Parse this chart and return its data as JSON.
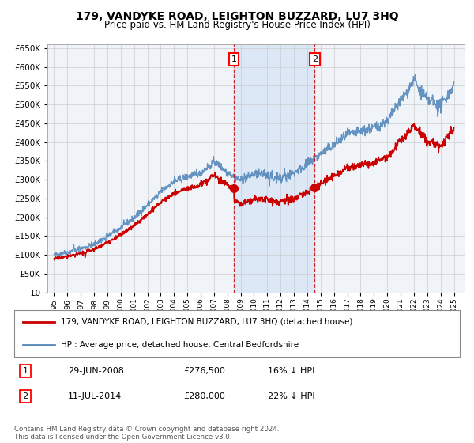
{
  "title": "179, VANDYKE ROAD, LEIGHTON BUZZARD, LU7 3HQ",
  "subtitle": "Price paid vs. HM Land Registry's House Price Index (HPI)",
  "legend_line1": "179, VANDYKE ROAD, LEIGHTON BUZZARD, LU7 3HQ (detached house)",
  "legend_line2": "HPI: Average price, detached house, Central Bedfordshire",
  "marker1_date": "29-JUN-2008",
  "marker1_price": "£276,500",
  "marker1_hpi": "16% ↓ HPI",
  "marker2_date": "11-JUL-2014",
  "marker2_price": "£280,000",
  "marker2_hpi": "22% ↓ HPI",
  "footer": "Contains HM Land Registry data © Crown copyright and database right 2024.\nThis data is licensed under the Open Government Licence v3.0.",
  "yticks": [
    0,
    50000,
    100000,
    150000,
    200000,
    250000,
    300000,
    350000,
    400000,
    450000,
    500000,
    550000,
    600000,
    650000
  ],
  "background_color": "#ffffff",
  "grid_color": "#cccccc",
  "plot_bg_color": "#f0f4f8",
  "red_color": "#cc0000",
  "blue_color": "#5588bb",
  "marker1_x": 2008.5,
  "marker2_x": 2014.55,
  "shade_color": "#dce8f5",
  "xtick_labels": [
    "95",
    "96",
    "97",
    "98",
    "99",
    "00",
    "01",
    "02",
    "03",
    "04",
    "05",
    "06",
    "07",
    "08",
    "09",
    "10",
    "11",
    "12",
    "13",
    "14",
    "15",
    "16",
    "17",
    "18",
    "19",
    "20",
    "21",
    "22",
    "23",
    "24",
    "25"
  ],
  "xtick_years": [
    1995,
    1996,
    1997,
    1998,
    1999,
    2000,
    2001,
    2002,
    2003,
    2004,
    2005,
    2006,
    2007,
    2008,
    2009,
    2010,
    2011,
    2012,
    2013,
    2014,
    2015,
    2016,
    2017,
    2018,
    2019,
    2020,
    2021,
    2022,
    2023,
    2024,
    2025
  ]
}
